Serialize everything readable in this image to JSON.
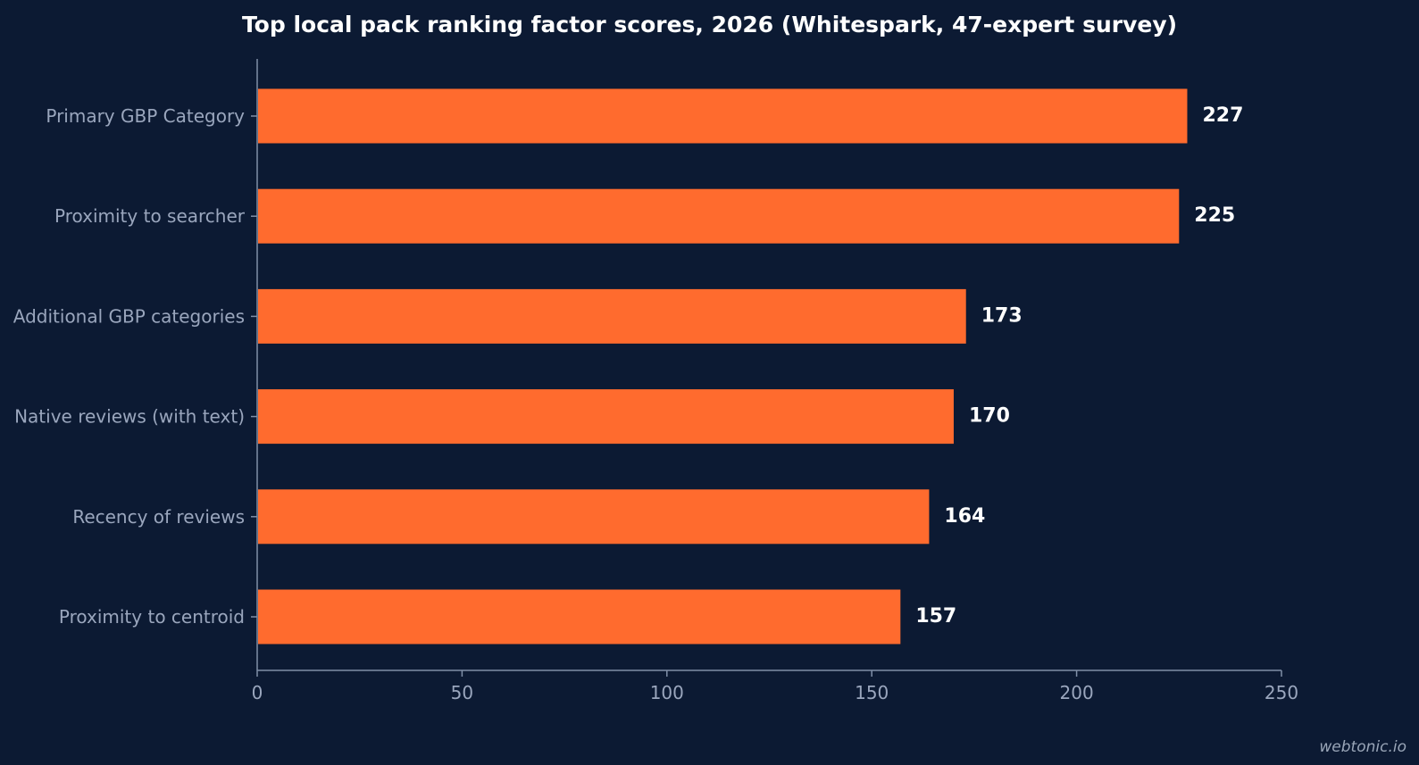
{
  "chart_data": {
    "type": "bar",
    "orientation": "horizontal",
    "title": "Top local pack ranking factor scores, 2026 (Whitespark, 47-expert survey)",
    "xlabel": "",
    "ylabel": "",
    "categories": [
      "Primary GBP Category",
      "Proximity to searcher",
      "Additional GBP categories",
      "Native reviews (with text)",
      "Recency of reviews",
      "Proximity to centroid"
    ],
    "values": [
      227,
      225,
      173,
      170,
      164,
      157
    ],
    "xlim": [
      0,
      250
    ],
    "x_ticks": [
      0,
      50,
      100,
      150,
      200,
      250
    ],
    "grid": false,
    "legend": "none",
    "colors": {
      "background": "#0c1a33",
      "bar": "#ff6b2e",
      "axis": "#8090a8",
      "category_label": "#9aa6bd",
      "value_label": "#ffffff",
      "tick_label": "#9aa6bd"
    }
  },
  "watermark": "webtonic.io"
}
